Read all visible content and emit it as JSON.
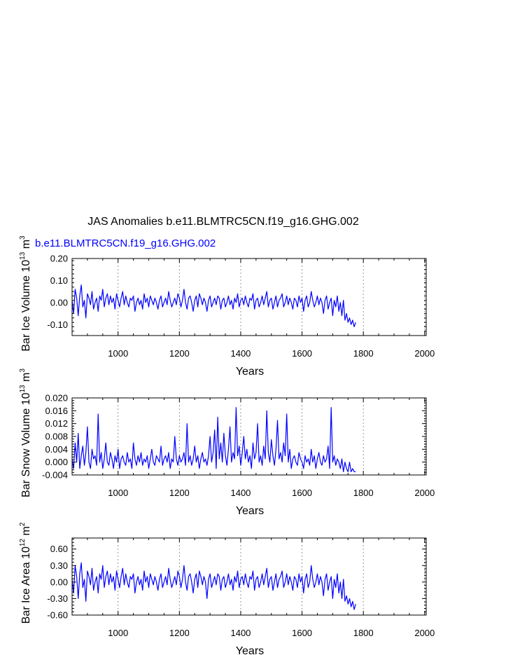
{
  "title": "JAS Anomalies b.e11.BLMTRC5CN.f19_g16.GHG.002",
  "legend_label": "b.e11.BLMTRC5CN.f19_g16.GHG.002",
  "colors": {
    "series": "#0000ff",
    "axes": "#000000",
    "grid": "#808080"
  },
  "chart_data": [
    {
      "type": "line",
      "name": "bar-ice-volume",
      "ylabel_main": "Bar Ice Volume 10",
      "ylabel_exp": "13",
      "ylabel_unit": " m",
      "ylabel_unit_exp": "3",
      "xlabel": "Years",
      "xlim": [
        850,
        2005
      ],
      "ylim": [
        -0.15,
        0.2
      ],
      "xticks": [
        1000,
        1200,
        1400,
        1600,
        1800,
        2000
      ],
      "xtick_labels": [
        "1000",
        "1200",
        "1400",
        "1600",
        "1800",
        "2000"
      ],
      "yticks": [
        -0.1,
        0.0,
        0.1,
        0.2
      ],
      "ytick_labels": [
        "-0.10",
        "0.00",
        "0.10",
        "0.20"
      ],
      "gridlines_x": [
        1000,
        1200,
        1400,
        1600,
        1800,
        2000
      ],
      "series": [
        {
          "name": "b.e11.BLMTRC5CN.f19_g16.GHG.002",
          "x_start": 850,
          "x_step": 5,
          "values": [
            0.01,
            -0.05,
            0.06,
            0.02,
            -0.06,
            0.03,
            0.08,
            -0.02,
            0.01,
            -0.07,
            0.04,
            0.02,
            -0.01,
            0.05,
            -0.03,
            0.0,
            0.02,
            -0.04,
            0.03,
            0.01,
            0.06,
            -0.02,
            0.02,
            0.04,
            -0.01,
            0.03,
            0.0,
            0.02,
            -0.03,
            0.04,
            0.01,
            -0.02,
            0.02,
            0.05,
            -0.01,
            0.03,
            0.0,
            -0.02,
            0.02,
            0.01,
            0.03,
            -0.04,
            0.0,
            0.02,
            -0.01,
            0.01,
            -0.03,
            0.04,
            0.0,
            0.02,
            -0.02,
            0.03,
            0.01,
            -0.01,
            0.02,
            0.0,
            -0.03,
            0.01,
            0.03,
            -0.02,
            0.0,
            0.02,
            -0.01,
            0.05,
            0.01,
            -0.02,
            0.0,
            0.02,
            -0.01,
            0.04,
            0.02,
            -0.02,
            0.01,
            0.06,
            0.0,
            -0.03,
            0.02,
            0.03,
            0.0,
            -0.04,
            0.01,
            0.03,
            -0.02,
            0.04,
            0.02,
            -0.01,
            0.02,
            0.0,
            -0.04,
            0.01,
            0.03,
            -0.02,
            0.0,
            0.02,
            -0.01,
            0.03,
            0.02,
            -0.03,
            0.01,
            0.02,
            -0.02,
            0.0,
            0.03,
            -0.01,
            0.01,
            -0.03,
            0.02,
            0.0,
            0.04,
            -0.02,
            0.01,
            0.02,
            -0.01,
            0.03,
            0.0,
            -0.02,
            0.02,
            0.01,
            0.04,
            -0.03,
            0.01,
            0.02,
            -0.02,
            0.0,
            0.03,
            -0.01,
            0.02,
            0.05,
            -0.02,
            0.01,
            0.02,
            -0.03,
            0.0,
            0.03,
            -0.02,
            0.01,
            0.02,
            0.04,
            -0.02,
            0.0,
            0.03,
            -0.01,
            0.02,
            0.0,
            -0.03,
            0.02,
            0.01,
            -0.02,
            0.03,
            0.0,
            0.02,
            -0.04,
            0.01,
            0.03,
            -0.02,
            0.0,
            0.05,
            0.01,
            -0.02,
            0.0,
            0.03,
            -0.01,
            0.02,
            0.0,
            -0.05,
            0.01,
            0.03,
            -0.03,
            0.0,
            0.02,
            -0.06,
            0.01,
            -0.02,
            0.03,
            -0.04,
            0.0,
            -0.06,
            0.01,
            -0.08,
            -0.05,
            -0.09,
            -0.07,
            -0.1,
            -0.08,
            -0.11,
            -0.09
          ]
        }
      ]
    },
    {
      "type": "line",
      "name": "bar-snow-volume",
      "ylabel_main": "Bar Snow Volume 10",
      "ylabel_exp": "13",
      "ylabel_unit": " m",
      "ylabel_unit_exp": "3",
      "xlabel": "Years",
      "xlim": [
        850,
        2005
      ],
      "ylim": [
        -0.004,
        0.02
      ],
      "xticks": [
        1000,
        1200,
        1400,
        1600,
        1800,
        2000
      ],
      "xtick_labels": [
        "1000",
        "1200",
        "1400",
        "1600",
        "1800",
        "2000"
      ],
      "yticks": [
        -0.004,
        0.0,
        0.004,
        0.008,
        0.012,
        0.016,
        0.02
      ],
      "ytick_labels": [
        "-0.004",
        "0.000",
        "0.004",
        "0.008",
        "0.012",
        "0.016",
        "0.020"
      ],
      "gridlines_x": [
        1000,
        1200,
        1400,
        1600,
        1800,
        2000
      ],
      "series": [
        {
          "name": "b.e11.BLMTRC5CN.f19_g16.GHG.002",
          "x_start": 850,
          "x_step": 5,
          "values": [
            0.001,
            -0.002,
            0.006,
            0.0,
            0.009,
            -0.002,
            0.002,
            0.005,
            -0.001,
            0.003,
            0.011,
            0.0,
            -0.002,
            0.004,
            0.001,
            0.002,
            -0.001,
            0.015,
            0.0,
            0.003,
            -0.002,
            0.001,
            0.006,
            0.0,
            -0.001,
            0.003,
            0.001,
            -0.002,
            0.002,
            0.0,
            0.004,
            -0.002,
            0.001,
            0.002,
            0.0,
            -0.001,
            0.003,
            0.0,
            0.001,
            -0.002,
            0.006,
            0.001,
            -0.001,
            0.002,
            0.0,
            0.003,
            -0.001,
            0.001,
            0.0,
            0.002,
            -0.002,
            0.001,
            0.004,
            0.0,
            -0.001,
            0.002,
            0.001,
            0.0,
            0.005,
            -0.001,
            0.001,
            0.002,
            0.0,
            0.003,
            -0.002,
            0.001,
            0.0,
            0.008,
            0.001,
            -0.001,
            0.002,
            0.0,
            0.001,
            0.003,
            -0.001,
            0.012,
            0.0,
            0.002,
            -0.001,
            0.001,
            0.005,
            0.0,
            0.002,
            -0.002,
            0.001,
            0.003,
            0.0,
            0.001,
            -0.001,
            0.002,
            0.008,
            0.0,
            0.003,
            0.01,
            -0.002,
            0.014,
            0.001,
            0.006,
            0.0,
            0.009,
            0.002,
            -0.001,
            0.004,
            0.011,
            0.0,
            0.003,
            0.001,
            0.017,
            0.002,
            0.005,
            -0.001,
            0.003,
            0.008,
            0.001,
            0.004,
            0.0,
            0.002,
            -0.002,
            0.006,
            0.001,
            0.003,
            0.012,
            0.0,
            0.002,
            -0.001,
            0.005,
            0.001,
            0.016,
            0.003,
            0.0,
            0.007,
            0.002,
            -0.001,
            0.004,
            0.013,
            0.001,
            0.003,
            0.0,
            0.006,
            0.002,
            0.015,
            0.0,
            0.004,
            -0.002,
            0.001,
            0.002,
            0.0,
            -0.001,
            0.003,
            0.001,
            0.0,
            -0.002,
            0.002,
            0.0,
            0.001,
            -0.001,
            0.004,
            0.0,
            0.002,
            -0.002,
            0.001,
            0.003,
            0.0,
            -0.001,
            0.002,
            0.0,
            0.001,
            0.005,
            -0.002,
            0.017,
            0.0,
            0.002,
            -0.001,
            0.001,
            0.0,
            -0.002,
            0.001,
            -0.003,
            0.0,
            -0.002,
            -0.003,
            0.0,
            -0.003,
            -0.002,
            -0.003,
            -0.003
          ]
        }
      ]
    },
    {
      "type": "line",
      "name": "bar-ice-area",
      "ylabel_main": "Bar Ice Area 10",
      "ylabel_exp": "12",
      "ylabel_unit": " m",
      "ylabel_unit_exp": "2",
      "xlabel": "Years",
      "xlim": [
        850,
        2005
      ],
      "ylim": [
        -0.6,
        0.8
      ],
      "xticks": [
        1000,
        1200,
        1400,
        1600,
        1800,
        2000
      ],
      "xtick_labels": [
        "1000",
        "1200",
        "1400",
        "1600",
        "1800",
        "2000"
      ],
      "yticks": [
        -0.6,
        -0.3,
        0.0,
        0.3,
        0.6
      ],
      "ytick_labels": [
        "-0.60",
        "-0.30",
        "0.00",
        "0.30",
        "0.60"
      ],
      "gridlines_x": [
        1000,
        1200,
        1400,
        1600,
        1800,
        2000
      ],
      "series": [
        {
          "name": "b.e11.BLMTRC5CN.f19_g16.GHG.002",
          "x_start": 850,
          "x_step": 5,
          "values": [
            0.05,
            -0.2,
            0.3,
            0.1,
            -0.3,
            0.15,
            0.35,
            -0.1,
            0.05,
            -0.35,
            0.2,
            0.1,
            -0.05,
            0.25,
            -0.15,
            0.0,
            0.1,
            -0.2,
            0.15,
            0.05,
            0.3,
            -0.1,
            0.1,
            0.2,
            -0.05,
            0.15,
            0.0,
            0.1,
            -0.15,
            0.2,
            0.05,
            -0.1,
            0.1,
            0.25,
            -0.05,
            0.15,
            0.0,
            -0.1,
            0.1,
            0.05,
            0.15,
            -0.2,
            0.0,
            0.1,
            -0.05,
            0.05,
            -0.15,
            0.2,
            0.0,
            0.1,
            -0.1,
            0.15,
            0.05,
            -0.05,
            0.1,
            0.0,
            -0.15,
            0.05,
            0.15,
            -0.1,
            0.0,
            0.1,
            -0.05,
            0.25,
            0.05,
            -0.1,
            0.0,
            0.1,
            -0.05,
            0.2,
            0.1,
            -0.1,
            0.05,
            0.3,
            0.0,
            -0.15,
            0.1,
            0.15,
            0.0,
            -0.2,
            0.05,
            0.15,
            -0.1,
            0.2,
            0.1,
            -0.05,
            0.1,
            0.0,
            -0.3,
            0.05,
            0.15,
            -0.1,
            0.0,
            0.1,
            -0.05,
            0.15,
            0.1,
            -0.15,
            0.05,
            0.1,
            -0.1,
            0.0,
            0.15,
            -0.05,
            0.05,
            -0.15,
            0.1,
            0.0,
            0.2,
            -0.1,
            0.05,
            0.1,
            -0.05,
            0.15,
            0.0,
            -0.1,
            0.1,
            0.05,
            0.2,
            -0.15,
            0.05,
            0.1,
            -0.1,
            0.0,
            0.15,
            -0.05,
            0.1,
            0.25,
            -0.1,
            0.05,
            0.1,
            -0.15,
            0.0,
            0.15,
            -0.1,
            0.05,
            0.1,
            0.2,
            -0.1,
            0.0,
            0.15,
            -0.05,
            0.1,
            0.0,
            -0.15,
            0.1,
            0.05,
            -0.1,
            0.15,
            0.0,
            0.1,
            -0.2,
            0.05,
            0.15,
            -0.1,
            0.0,
            0.3,
            0.05,
            -0.1,
            0.0,
            0.15,
            -0.05,
            0.1,
            0.0,
            -0.25,
            0.05,
            0.15,
            -0.15,
            0.0,
            0.1,
            -0.3,
            0.05,
            -0.1,
            0.15,
            -0.2,
            0.0,
            -0.3,
            0.05,
            -0.35,
            -0.25,
            -0.4,
            -0.3,
            -0.45,
            -0.35,
            -0.5,
            -0.4
          ]
        }
      ]
    }
  ]
}
